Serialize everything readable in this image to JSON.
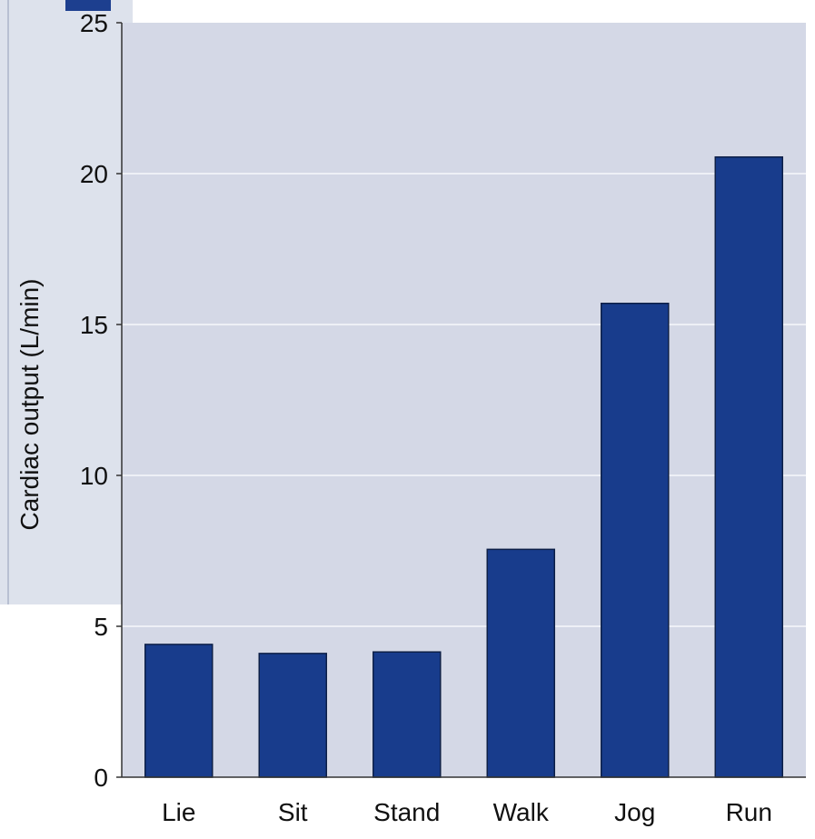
{
  "chart_data": {
    "type": "bar",
    "categories": [
      "Lie",
      "Sit",
      "Stand",
      "Walk",
      "Jog",
      "Run"
    ],
    "values": [
      4.4,
      4.1,
      4.15,
      7.55,
      15.7,
      20.55
    ],
    "title": "",
    "xlabel": "",
    "ylabel": "Cardiac output (L/min)",
    "ylim": [
      0,
      25
    ],
    "yticks": [
      0,
      5,
      10,
      15,
      20,
      25
    ],
    "grid": true,
    "legend": "none",
    "colors": {
      "bar": "#183c8c",
      "bar_outline": "#0d1f47",
      "plot_background": "#d4d8e6",
      "gridline": "#eef0f6",
      "decor_blue": "#1d3f8f",
      "decor_panel": "#dde2ec"
    }
  }
}
